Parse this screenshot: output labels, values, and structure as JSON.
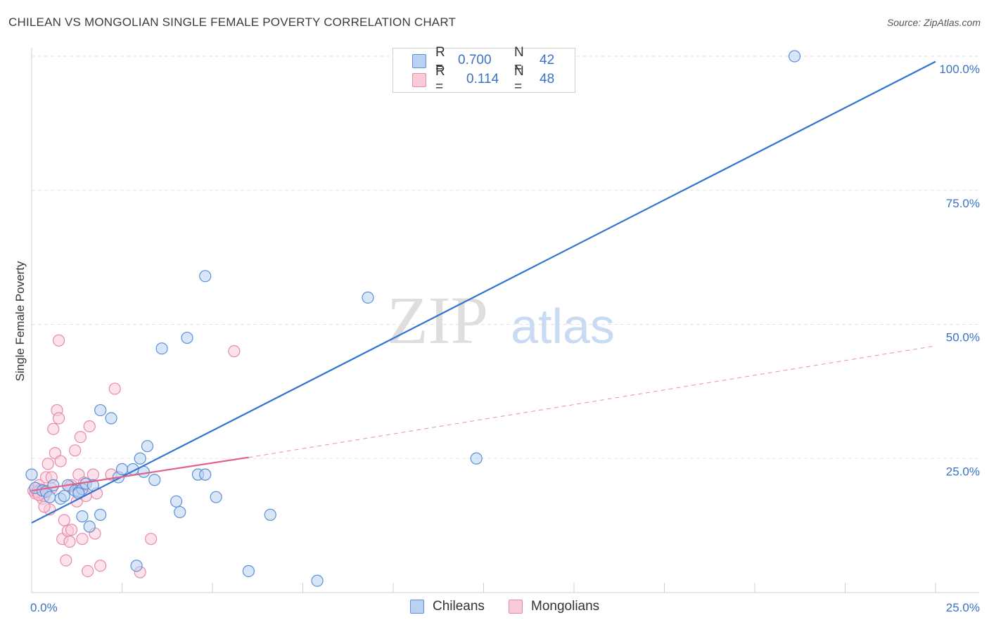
{
  "title": "CHILEAN VS MONGOLIAN SINGLE FEMALE POVERTY CORRELATION CHART",
  "source": "Source: ZipAtlas.com",
  "watermark": {
    "zip": "ZIP",
    "atlas": "atlas"
  },
  "legend": {
    "r_label": "R =",
    "n_label": "N =",
    "rows": [
      {
        "r": "0.700",
        "n": "42"
      },
      {
        "r": "0.114",
        "n": "48"
      }
    ]
  },
  "chart_data": {
    "type": "scatter",
    "title": "CHILEAN VS MONGOLIAN SINGLE FEMALE POVERTY CORRELATION CHART",
    "xlabel": "",
    "ylabel": "Single Female Poverty",
    "xlim": [
      0,
      25
    ],
    "ylim": [
      0,
      100
    ],
    "x_tick_labels": [
      "0.0%",
      "25.0%"
    ],
    "y_tick_labels": [
      "25.0%",
      "50.0%",
      "75.0%",
      "100.0%"
    ],
    "y_ticks": [
      25,
      50,
      75,
      100
    ],
    "grid": true,
    "legend_position": "top-center",
    "colors": {
      "chileans": "#5b8fd6",
      "chileans_fill": "#b9d1f3",
      "chileans_line": "#2f74d0",
      "mongolians": "#e88aa8",
      "mongolians_fill": "#f9cad8",
      "mongolians_line": "#e0608a"
    },
    "series": [
      {
        "name": "Chileans",
        "points": [
          [
            0.0,
            22.0
          ],
          [
            0.1,
            19.5
          ],
          [
            0.3,
            19.0
          ],
          [
            0.4,
            18.8
          ],
          [
            0.5,
            17.8
          ],
          [
            0.6,
            20.0
          ],
          [
            0.8,
            17.5
          ],
          [
            0.9,
            18.0
          ],
          [
            1.0,
            20.0
          ],
          [
            1.2,
            19.0
          ],
          [
            1.3,
            18.8
          ],
          [
            1.4,
            19.3
          ],
          [
            1.5,
            20.3
          ],
          [
            1.7,
            20.0
          ],
          [
            1.4,
            14.2
          ],
          [
            1.6,
            12.3
          ],
          [
            1.9,
            14.5
          ],
          [
            1.9,
            34.0
          ],
          [
            2.2,
            32.5
          ],
          [
            2.4,
            21.5
          ],
          [
            2.5,
            23.0
          ],
          [
            2.8,
            23.0
          ],
          [
            3.0,
            25.0
          ],
          [
            3.1,
            22.5
          ],
          [
            3.2,
            27.3
          ],
          [
            3.4,
            21.0
          ],
          [
            3.6,
            45.5
          ],
          [
            4.0,
            17.0
          ],
          [
            4.1,
            15.0
          ],
          [
            4.3,
            47.5
          ],
          [
            4.6,
            22.0
          ],
          [
            4.8,
            22.0
          ],
          [
            4.8,
            59.0
          ],
          [
            5.1,
            17.8
          ],
          [
            6.0,
            4.0
          ],
          [
            6.6,
            14.5
          ],
          [
            7.9,
            2.2
          ],
          [
            9.3,
            55.0
          ],
          [
            12.3,
            25.0
          ],
          [
            21.1,
            100.0
          ],
          [
            2.9,
            5.0
          ],
          [
            1.3,
            18.5
          ]
        ]
      },
      {
        "name": "Mongolians",
        "points": [
          [
            0.05,
            19.0
          ],
          [
            0.1,
            18.5
          ],
          [
            0.2,
            20.0
          ],
          [
            0.3,
            17.5
          ],
          [
            0.35,
            18.0
          ],
          [
            0.4,
            21.5
          ],
          [
            0.45,
            24.0
          ],
          [
            0.5,
            15.5
          ],
          [
            0.55,
            21.5
          ],
          [
            0.6,
            30.5
          ],
          [
            0.65,
            26.0
          ],
          [
            0.7,
            34.0
          ],
          [
            0.75,
            32.5
          ],
          [
            0.75,
            47.0
          ],
          [
            0.8,
            24.5
          ],
          [
            0.85,
            10.0
          ],
          [
            0.9,
            13.5
          ],
          [
            0.95,
            6.0
          ],
          [
            1.0,
            11.5
          ],
          [
            1.05,
            9.5
          ],
          [
            1.1,
            20.0
          ],
          [
            1.1,
            11.7
          ],
          [
            1.2,
            26.5
          ],
          [
            1.25,
            17.0
          ],
          [
            1.3,
            22.0
          ],
          [
            1.35,
            29.0
          ],
          [
            1.4,
            10.0
          ],
          [
            1.45,
            20.5
          ],
          [
            1.5,
            18.0
          ],
          [
            1.55,
            4.0
          ],
          [
            1.6,
            31.0
          ],
          [
            1.7,
            22.0
          ],
          [
            1.75,
            11.0
          ],
          [
            1.8,
            18.5
          ],
          [
            1.9,
            5.0
          ],
          [
            2.2,
            22.0
          ],
          [
            2.3,
            38.0
          ],
          [
            3.0,
            3.8
          ],
          [
            3.3,
            10.0
          ],
          [
            5.6,
            45.0
          ],
          [
            0.25,
            19.2
          ],
          [
            0.3,
            18.6
          ],
          [
            0.15,
            18.8
          ],
          [
            0.4,
            19.0
          ],
          [
            0.55,
            19.4
          ],
          [
            1.05,
            19.8
          ],
          [
            0.2,
            18.2
          ],
          [
            0.35,
            16.0
          ]
        ]
      }
    ],
    "trendlines": [
      {
        "name": "Chileans",
        "from": [
          0,
          13.0
        ],
        "to": [
          25,
          99.0
        ]
      },
      {
        "name": "Mongolians",
        "from": [
          0,
          19.0
        ],
        "to": [
          6,
          25.2
        ],
        "dashed_to": [
          25,
          46.0
        ]
      }
    ]
  },
  "bottom_legend": [
    {
      "label": "Chileans"
    },
    {
      "label": "Mongolians"
    }
  ]
}
